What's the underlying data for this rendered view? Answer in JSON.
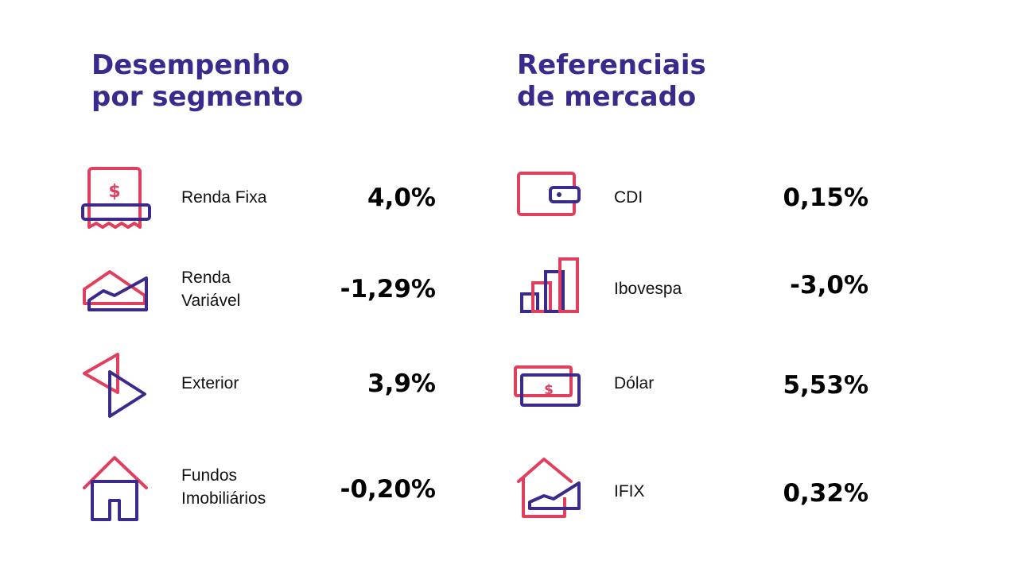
{
  "colors": {
    "accent": "#e0405e",
    "brand": "#3b2a8c",
    "text": "#000000"
  },
  "left": {
    "title_line1": "Desempenho",
    "title_line2": "por segmento",
    "rows": [
      {
        "label_line1": "Renda Fixa",
        "label_line2": "",
        "value": "4,0%",
        "icon": "receipt-dollar-icon"
      },
      {
        "label_line1": "Renda",
        "label_line2": "Variável",
        "value": "-1,29%",
        "icon": "mountain-chart-icon"
      },
      {
        "label_line1": "Exterior",
        "label_line2": "",
        "value": "3,9%",
        "icon": "arrows-exchange-icon"
      },
      {
        "label_line1": "Fundos",
        "label_line2": "Imobiliários",
        "value": "-0,20%",
        "icon": "house-icon"
      }
    ]
  },
  "right": {
    "title_line1": "Referenciais",
    "title_line2": "de mercado",
    "rows": [
      {
        "label": "CDI",
        "value": "0,15%",
        "icon": "wallet-icon"
      },
      {
        "label": "Ibovespa",
        "value": "-3,0%",
        "icon": "bar-chart-icon"
      },
      {
        "label": "Dólar",
        "value": "5,53%",
        "icon": "banknote-icon"
      },
      {
        "label": "IFIX",
        "value": "0,32%",
        "icon": "house-chart-icon"
      }
    ]
  }
}
